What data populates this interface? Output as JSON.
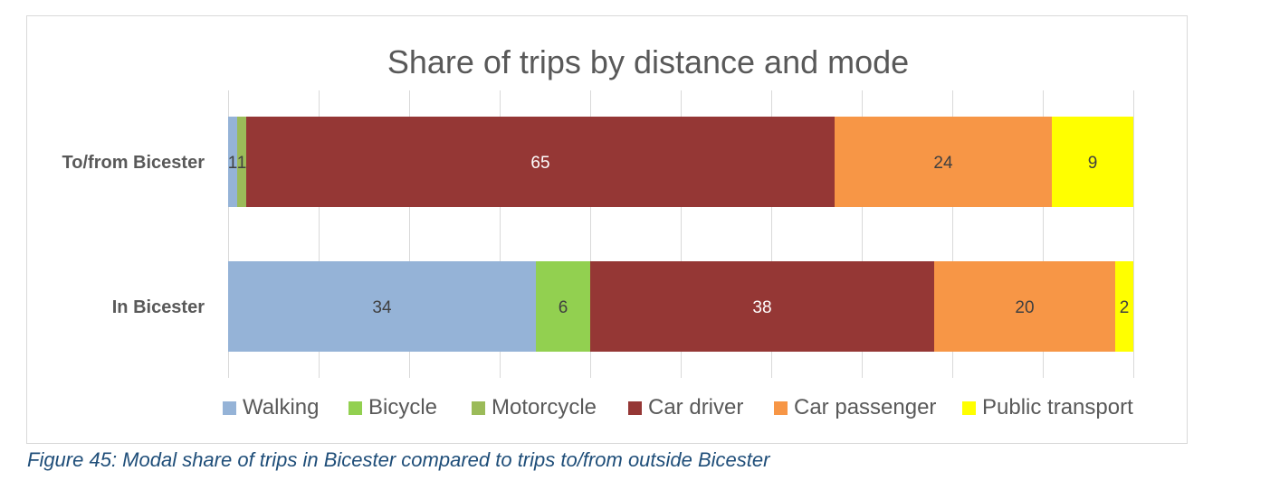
{
  "chart_data": {
    "type": "bar",
    "orientation": "horizontal",
    "stacked": true,
    "title": "Share of trips by distance and mode",
    "categories": [
      "To/from Bicester",
      "In Bicester"
    ],
    "series": [
      {
        "name": "Walking",
        "color": "#95b3d7",
        "values": [
          1,
          34
        ],
        "labels": [
          "1",
          "34"
        ]
      },
      {
        "name": "Bicycle",
        "color": "#92d050",
        "values": [
          0,
          6
        ],
        "labels": [
          "",
          "6"
        ]
      },
      {
        "name": "Motorcycle",
        "color": "#9bbb59",
        "values": [
          1,
          0
        ],
        "labels": [
          "1",
          ""
        ]
      },
      {
        "name": "Car driver",
        "color": "#953735",
        "values": [
          65,
          38
        ],
        "labels": [
          "65",
          "38"
        ]
      },
      {
        "name": "Car passenger",
        "color": "#f79646",
        "values": [
          24,
          20
        ],
        "labels": [
          "24",
          "20"
        ]
      },
      {
        "name": "Public transport",
        "color": "#ffff00",
        "values": [
          9,
          2
        ],
        "labels": [
          "9",
          "2"
        ]
      }
    ],
    "xlim": [
      0,
      100
    ],
    "grid": true,
    "legend": "bottom",
    "xlabel": "",
    "ylabel": ""
  },
  "caption": "Figure 45: Modal share of trips in Bicester compared to trips to/from outside Bicester"
}
